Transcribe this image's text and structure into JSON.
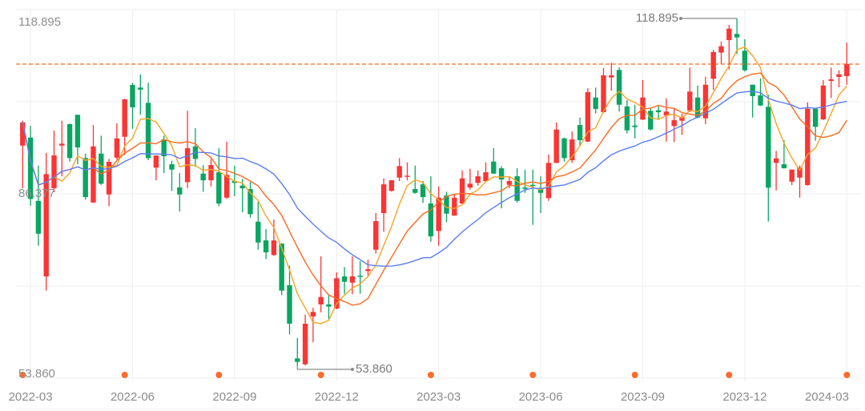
{
  "chart_data": {
    "type": "candlestick",
    "title": "",
    "xlabel": "",
    "ylabel": "",
    "up_color": "#fa3534",
    "down_color": "#0aa562",
    "ma_colors": [
      "#f7a524",
      "#fb6a1e",
      "#5b7cf5"
    ],
    "last_price_line_color": "#fb6a1e",
    "event_marker_color": "#ff6a2e",
    "grid": true,
    "y_labels": {
      "max": "118.895",
      "mid": "86.377",
      "min": "53.860"
    },
    "ylim": [
      53.86,
      118.895
    ],
    "annotations": {
      "high": "118.895",
      "high_index": 91,
      "low": "53.860",
      "low_index": 35
    },
    "last_price": 110.35,
    "x_ticks": [
      {
        "label": "2022-03",
        "index": 1
      },
      {
        "label": "2022-06",
        "index": 14
      },
      {
        "label": "2022-09",
        "index": 27
      },
      {
        "label": "2022-12",
        "index": 40
      },
      {
        "label": "2023-03",
        "index": 53
      },
      {
        "label": "2023-06",
        "index": 66
      },
      {
        "label": "2023-09",
        "index": 79
      },
      {
        "label": "2023-12",
        "index": 92
      },
      {
        "label": "2024-03",
        "index": 105
      }
    ],
    "event_markers": [
      0,
      13,
      25,
      38,
      52,
      65,
      78,
      90,
      105
    ],
    "ohlc_fields": [
      "open",
      "high",
      "low",
      "close"
    ],
    "ohlc": [
      [
        95.11,
        99.76,
        87.13,
        99.46
      ],
      [
        96.61,
        98.81,
        83.87,
        85.13
      ],
      [
        84.77,
        91.37,
        76.38,
        78.63
      ],
      [
        70.64,
        93.76,
        67.99,
        89.78
      ],
      [
        87.13,
        97.96,
        86.38,
        93.27
      ],
      [
        95.11,
        99.76,
        89.37,
        95.47
      ],
      [
        99.11,
        99.26,
        92.12,
        92.77
      ],
      [
        100.87,
        100.87,
        91.62,
        94.77
      ],
      [
        92.77,
        93.61,
        84.98,
        85.48
      ],
      [
        84.47,
        98.96,
        84.38,
        94.96
      ],
      [
        93.61,
        96.97,
        87.77,
        87.98
      ],
      [
        85.97,
        92.62,
        83.78,
        92.07
      ],
      [
        92.86,
        99.26,
        92.47,
        96.46
      ],
      [
        96.76,
        103.86,
        93.37,
        103.76
      ],
      [
        106.46,
        106.86,
        98.26,
        102.26
      ],
      [
        105.96,
        108.45,
        100.87,
        105.56
      ],
      [
        103.11,
        106.86,
        92.37,
        92.77
      ],
      [
        90.98,
        93.27,
        88.62,
        93.27
      ],
      [
        96.27,
        96.97,
        89.97,
        93.12
      ],
      [
        91.62,
        92.27,
        86.63,
        90.62
      ],
      [
        87.28,
        89.97,
        82.78,
        85.97
      ],
      [
        88.28,
        101.62,
        87.13,
        94.62
      ],
      [
        94.96,
        98.36,
        91.13,
        92.62
      ],
      [
        89.87,
        91.47,
        86.48,
        88.62
      ],
      [
        88.62,
        92.62,
        87.47,
        91.47
      ],
      [
        90.12,
        94.62,
        83.78,
        84.28
      ],
      [
        85.37,
        95.86,
        85.13,
        89.63
      ],
      [
        88.47,
        91.37,
        85.63,
        88.13
      ],
      [
        87.62,
        88.88,
        82.63,
        87.13
      ],
      [
        86.98,
        88.37,
        81.63,
        82.28
      ],
      [
        80.88,
        84.62,
        75.63,
        76.98
      ],
      [
        77.38,
        79.48,
        73.89,
        75.14
      ],
      [
        74.64,
        81.28,
        74.49,
        77.38
      ],
      [
        76.79,
        76.79,
        67.15,
        67.99
      ],
      [
        68.99,
        72.63,
        59.81,
        61.8
      ],
      [
        55.31,
        59.15,
        53.86,
        54.65
      ],
      [
        54.2,
        63.49,
        54.0,
        61.8
      ],
      [
        63.15,
        64.8,
        58.31,
        64.0
      ],
      [
        65.4,
        74.39,
        63.9,
        66.79
      ],
      [
        65.4,
        67.15,
        62.65,
        65.0
      ],
      [
        64.65,
        71.39,
        64.5,
        70.3
      ],
      [
        70.64,
        72.39,
        67.39,
        69.64
      ],
      [
        69.49,
        74.39,
        67.3,
        70.64
      ],
      [
        70.79,
        73.49,
        67.39,
        70.6
      ],
      [
        71.65,
        73.79,
        70.79,
        71.99
      ],
      [
        75.63,
        82.48,
        74.88,
        80.98
      ],
      [
        82.48,
        88.97,
        78.99,
        87.87
      ],
      [
        86.63,
        88.7,
        86.5,
        88.62
      ],
      [
        89.12,
        92.77,
        88.47,
        91.28
      ],
      [
        89.27,
        91.97,
        88.62,
        89.48
      ],
      [
        86.98,
        91.37,
        86.12,
        86.27
      ],
      [
        87.87,
        88.47,
        84.38,
        85.48
      ],
      [
        84.28,
        89.37,
        77.13,
        78.13
      ],
      [
        79.14,
        87.47,
        76.38,
        85.37
      ],
      [
        85.78,
        86.48,
        80.79,
        82.38
      ],
      [
        82.03,
        85.97,
        81.95,
        85.37
      ],
      [
        84.28,
        90.47,
        84.2,
        88.97
      ],
      [
        87.28,
        90.77,
        86.87,
        87.98
      ],
      [
        88.13,
        90.47,
        87.62,
        89.37
      ],
      [
        88.47,
        91.97,
        88.4,
        90.12
      ],
      [
        92.12,
        94.62,
        89.78,
        89.87
      ],
      [
        90.87,
        91.28,
        83.38,
        88.77
      ],
      [
        87.77,
        89.37,
        87.13,
        88.47
      ],
      [
        89.37,
        90.87,
        84.47,
        84.77
      ],
      [
        87.28,
        90.62,
        86.27,
        87.02
      ],
      [
        87.77,
        90.62,
        80.28,
        87.57
      ],
      [
        86.98,
        89.37,
        82.48,
        86.27
      ],
      [
        85.28,
        93.46,
        84.77,
        91.88
      ],
      [
        91.88,
        99.46,
        91.8,
        98.11
      ],
      [
        96.46,
        96.61,
        92.12,
        92.77
      ],
      [
        92.37,
        97.76,
        91.88,
        96.27
      ],
      [
        98.96,
        100.36,
        95.11,
        96.12
      ],
      [
        95.86,
        105.86,
        95.77,
        105.11
      ],
      [
        104.1,
        105.96,
        101.11,
        101.96
      ],
      [
        101.36,
        109.6,
        101.26,
        108.25
      ],
      [
        107.85,
        110.61,
        105.36,
        108.25
      ],
      [
        109.26,
        109.75,
        101.47,
        102.75
      ],
      [
        102.45,
        103.61,
        97.36,
        97.96
      ],
      [
        98.86,
        102.75,
        96.46,
        98.56
      ],
      [
        99.97,
        107.36,
        99.9,
        104.1
      ],
      [
        101.62,
        102.11,
        97.96,
        98.11
      ],
      [
        101.71,
        102.61,
        99.97,
        101.36
      ],
      [
        100.76,
        103.95,
        95.86,
        101.47
      ],
      [
        98.77,
        102.11,
        95.77,
        99.86
      ],
      [
        99.76,
        101.11,
        97.12,
        100.46
      ],
      [
        101.62,
        109.71,
        101.36,
        105.21
      ],
      [
        104.1,
        106.35,
        100.21,
        100.36
      ],
      [
        100.21,
        108.0,
        99.11,
        106.5
      ],
      [
        107.61,
        113.0,
        105.51,
        112.6
      ],
      [
        112.5,
        114.59,
        110.35,
        113.69
      ],
      [
        114.85,
        117.69,
        109.35,
        116.99
      ],
      [
        116.0,
        118.895,
        112.2,
        115.34
      ],
      [
        112.85,
        115.0,
        108.96,
        109.2
      ],
      [
        106.5,
        106.5,
        100.36,
        104.36
      ],
      [
        104.51,
        107.7,
        102.52,
        102.61
      ],
      [
        102.37,
        104.61,
        80.88,
        87.23
      ],
      [
        91.88,
        94.12,
        86.72,
        92.72
      ],
      [
        91.62,
        96.12,
        90.8,
        90.87
      ],
      [
        88.37,
        90.62,
        87.72,
        90.62
      ],
      [
        89.12,
        91.37,
        85.37,
        91.02
      ],
      [
        87.72,
        103.2,
        87.62,
        102.01
      ],
      [
        102.01,
        102.01,
        96.01,
        98.62
      ],
      [
        100.01,
        107.36,
        99.91,
        106.35
      ],
      [
        107.21,
        109.71,
        104.01,
        107.5
      ],
      [
        107.95,
        109.2,
        106.01,
        108.45
      ],
      [
        108.1,
        114.35,
        106.5,
        110.35
      ]
    ]
  }
}
